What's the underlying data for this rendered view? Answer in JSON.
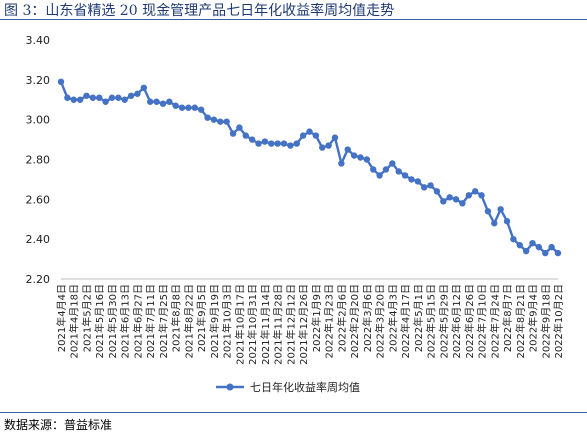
{
  "header": {
    "title": "图 3：山东省精选 20 现金管理产品七日年化收益率周均值走势"
  },
  "footer": {
    "source": "数据来源：普益标准"
  },
  "chart_data": {
    "type": "line",
    "title": "",
    "xlabel": "",
    "ylabel": "",
    "ylim": [
      2.2,
      3.4
    ],
    "yticks": [
      "3.40",
      "3.20",
      "3.00",
      "2.80",
      "2.60",
      "2.40",
      "2.20"
    ],
    "ytick_values": [
      3.4,
      3.2,
      3.0,
      2.8,
      2.6,
      2.4,
      2.2
    ],
    "legend_position": "bottom",
    "grid": false,
    "x_labels": [
      "2021年4月4日",
      "2021年4月18日",
      "2021年5月2日",
      "2021年5月16日",
      "2021年5月30日",
      "2021年6月13日",
      "2021年6月27日",
      "2021年7月11日",
      "2021年7月25日",
      "2021年8月8日",
      "2021年8月22日",
      "2021年9月5日",
      "2021年9月19日",
      "2021年10月3日",
      "2021年10月17日",
      "2021年10月31日",
      "2021年11月14日",
      "2021年11月28日",
      "2021年12月12日",
      "2021年12月26日",
      "2022年1月9日",
      "2022年1月23日",
      "2022年2月6日",
      "2022年2月20日",
      "2022年3月6日",
      "2022年3月20日",
      "2022年4月3日",
      "2022年4月17日",
      "2022年5月1日",
      "2022年5月15日",
      "2022年5月29日",
      "2022年6月12日",
      "2022年6月26日",
      "2022年7月10日",
      "2022年7月24日",
      "2022年8月7日",
      "2022年8月21日",
      "2022年9月4日",
      "2022年9月18日",
      "2022年10月2日"
    ],
    "series": [
      {
        "name": "七日年化收益率周均值",
        "color": "#4472c4",
        "values": [
          3.19,
          3.11,
          3.1,
          3.1,
          3.12,
          3.11,
          3.11,
          3.09,
          3.11,
          3.11,
          3.1,
          3.12,
          3.13,
          3.16,
          3.09,
          3.09,
          3.08,
          3.09,
          3.07,
          3.06,
          3.06,
          3.06,
          3.05,
          3.01,
          3.0,
          2.99,
          2.99,
          2.93,
          2.96,
          2.92,
          2.9,
          2.88,
          2.89,
          2.88,
          2.88,
          2.88,
          2.87,
          2.88,
          2.92,
          2.94,
          2.92,
          2.86,
          2.87,
          2.91,
          2.78,
          2.85,
          2.82,
          2.81,
          2.8,
          2.75,
          2.72,
          2.75,
          2.78,
          2.74,
          2.72,
          2.7,
          2.69,
          2.66,
          2.67,
          2.64,
          2.59,
          2.61,
          2.6,
          2.58,
          2.62,
          2.64,
          2.62,
          2.54,
          2.48,
          2.55,
          2.49,
          2.4,
          2.37,
          2.34,
          2.38,
          2.36,
          2.33,
          2.36,
          2.33
        ]
      }
    ]
  }
}
